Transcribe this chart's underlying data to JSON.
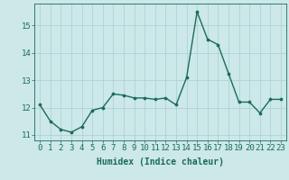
{
  "x": [
    0,
    1,
    2,
    3,
    4,
    5,
    6,
    7,
    8,
    9,
    10,
    11,
    12,
    13,
    14,
    15,
    16,
    17,
    18,
    19,
    20,
    21,
    22,
    23
  ],
  "y": [
    12.1,
    11.5,
    11.2,
    11.1,
    11.3,
    11.9,
    12.0,
    12.5,
    12.45,
    12.35,
    12.35,
    12.3,
    12.35,
    12.1,
    13.1,
    15.5,
    14.5,
    14.3,
    13.25,
    12.2,
    12.2,
    11.8,
    12.3,
    12.3
  ],
  "line_color": "#1a6b5a",
  "marker": "o",
  "marker_size": 2.2,
  "line_width": 1.0,
  "bg_color": "#cce8e8",
  "grid_color": "#aacfcf",
  "tick_color": "#1a6b5a",
  "label_color": "#1a6b5a",
  "xlabel": "Humidex (Indice chaleur)",
  "ylim_min": 10.8,
  "ylim_max": 15.8,
  "yticks": [
    11,
    12,
    13,
    14,
    15
  ],
  "xticks": [
    0,
    1,
    2,
    3,
    4,
    5,
    6,
    7,
    8,
    9,
    10,
    11,
    12,
    13,
    14,
    15,
    16,
    17,
    18,
    19,
    20,
    21,
    22,
    23
  ],
  "font_size": 6.5,
  "xlabel_font_size": 7.0
}
